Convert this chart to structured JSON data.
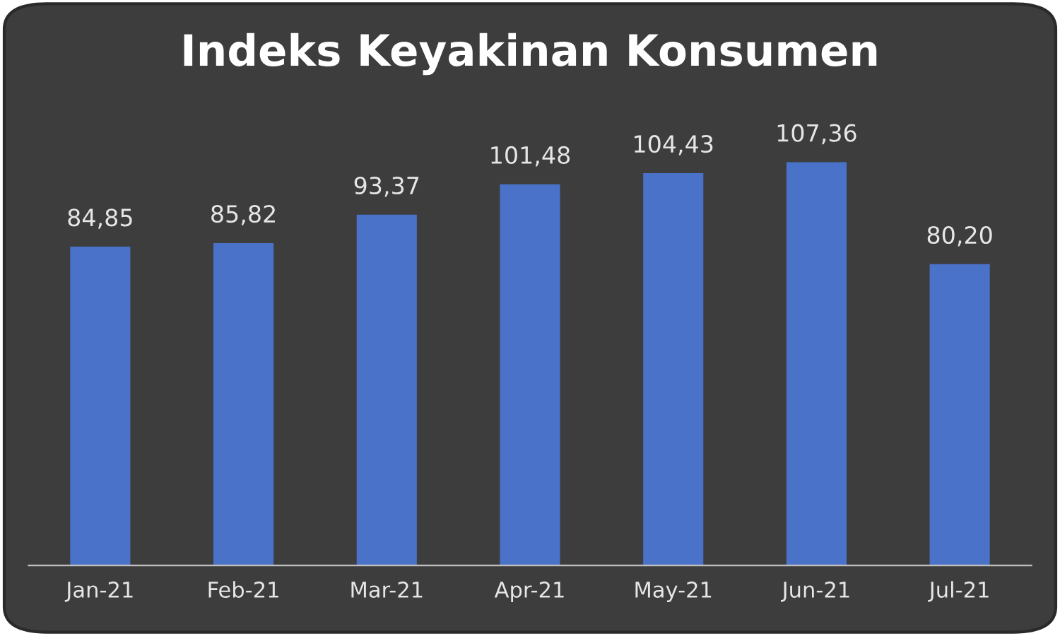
{
  "chart_data": {
    "type": "bar",
    "title": "Indeks Keyakinan Konsumen",
    "categories": [
      "Jan-21",
      "Feb-21",
      "Mar-21",
      "Apr-21",
      "May-21",
      "Jun-21",
      "Jul-21"
    ],
    "values": [
      84.85,
      85.82,
      93.37,
      101.48,
      104.43,
      107.36,
      80.2
    ],
    "value_labels": [
      "84,85",
      "85,82",
      "93,37",
      "101,48",
      "104,43",
      "107,36",
      "80,20"
    ],
    "color": "#4a72c8"
  }
}
